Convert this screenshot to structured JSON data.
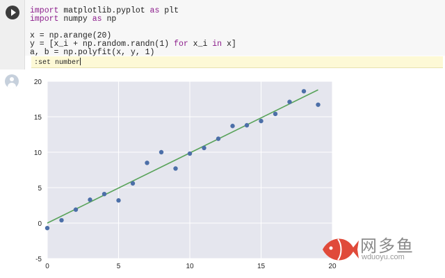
{
  "cell": {
    "code_lines": [
      [
        {
          "t": "import",
          "k": true
        },
        {
          "t": " matplotlib.pyplot "
        },
        {
          "t": "as",
          "k": true
        },
        {
          "t": " plt"
        }
      ],
      [
        {
          "t": "import",
          "k": true
        },
        {
          "t": " numpy "
        },
        {
          "t": "as",
          "k": true
        },
        {
          "t": " np"
        }
      ],
      [],
      [
        {
          "t": "x = np.arange(20)"
        }
      ],
      [
        {
          "t": "y = [x_i + np.random.randn(1) "
        },
        {
          "t": "for",
          "k": true
        },
        {
          "t": " x_i "
        },
        {
          "t": "in",
          "k": true
        },
        {
          "t": " x]"
        }
      ],
      [
        {
          "t": "a, b = np.polyfit(x, y, 1)"
        }
      ]
    ],
    "command_line": ":set number"
  },
  "watermark": {
    "title": "网多鱼",
    "url": "wduoyu.com"
  },
  "chart_data": {
    "type": "scatter",
    "xlim": [
      0,
      20
    ],
    "ylim": [
      -5,
      20
    ],
    "x_ticks": [
      0,
      5,
      10,
      15,
      20
    ],
    "y_ticks": [
      -5,
      0,
      5,
      10,
      15,
      20
    ],
    "grid": true,
    "background": "#e5e6ee",
    "points": {
      "color": "#4c6fa8",
      "x": [
        0,
        1,
        2,
        3,
        4,
        5,
        6,
        7,
        8,
        9,
        10,
        11,
        12,
        13,
        14,
        15,
        16,
        17,
        18,
        19
      ],
      "y": [
        -0.7,
        0.4,
        1.9,
        3.3,
        4.1,
        3.2,
        5.6,
        8.5,
        10.0,
        7.7,
        9.8,
        10.6,
        11.9,
        13.7,
        13.8,
        14.4,
        15.4,
        17.1,
        18.6,
        16.7
      ]
    },
    "fit_line": {
      "color": "#59a35a",
      "x": [
        0,
        19
      ],
      "y": [
        0.0,
        18.8
      ]
    }
  }
}
